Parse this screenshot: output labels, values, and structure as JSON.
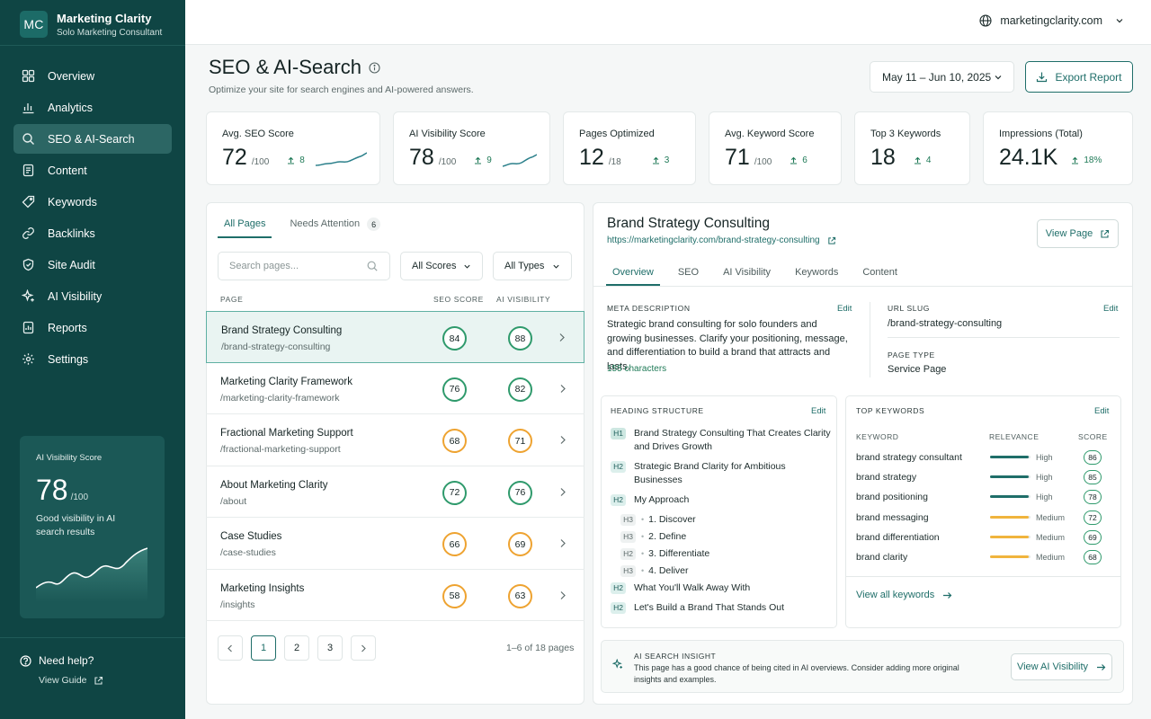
{
  "brand": {
    "logo": "MC",
    "name": "Marketing Clarity",
    "subtitle": "Solo Marketing Consultant"
  },
  "nav": [
    {
      "label": "Overview",
      "icon": "grid-icon",
      "active": false
    },
    {
      "label": "Analytics",
      "icon": "bar-chart-icon",
      "active": false
    },
    {
      "label": "SEO & AI-Search",
      "icon": "search-icon",
      "active": true
    },
    {
      "label": "Content",
      "icon": "document-icon",
      "active": false
    },
    {
      "label": "Keywords",
      "icon": "tag-icon",
      "active": false
    },
    {
      "label": "Backlinks",
      "icon": "link-icon",
      "active": false
    },
    {
      "label": "Site Audit",
      "icon": "shield-icon",
      "active": false
    },
    {
      "label": "AI Visibility",
      "icon": "sparkle-icon",
      "active": false
    },
    {
      "label": "Reports",
      "icon": "report-icon",
      "active": false
    },
    {
      "label": "Settings",
      "icon": "gear-icon",
      "active": false
    }
  ],
  "side_card": {
    "title": "AI Visibility Score",
    "score": "78",
    "of": "/100",
    "desc": "Good visibility in AI search results"
  },
  "help": {
    "label": "Need help?",
    "guide": "View Guide"
  },
  "topbar": {
    "domain": "marketingclarity.com"
  },
  "header": {
    "title": "SEO & AI-Search",
    "subtitle": "Optimize your site for search engines and AI-powered answers.",
    "date_range": "May 11 – Jun 10, 2025",
    "export_label": "Export Report"
  },
  "kpis": [
    {
      "title": "Avg. SEO Score",
      "value": "72",
      "of": "/100",
      "delta": "8",
      "spark": true
    },
    {
      "title": "AI Visibility Score",
      "value": "78",
      "of": "/100",
      "delta": "9",
      "spark": true
    },
    {
      "title": "Pages Optimized",
      "value": "12",
      "of": "/18",
      "delta": "3",
      "spark": false
    },
    {
      "title": "Avg. Keyword Score",
      "value": "71",
      "of": "/100",
      "delta": "6",
      "spark": false
    },
    {
      "title": "Top 3 Keywords",
      "value": "18",
      "of": "",
      "delta": "4",
      "spark": false
    },
    {
      "title": "Impressions (Total)",
      "value": "24.1K",
      "of": "",
      "delta": "18%",
      "spark": false
    }
  ],
  "pages_panel": {
    "tabs": [
      {
        "label": "All Pages",
        "active": true
      },
      {
        "label": "Needs Attention",
        "count": "6",
        "active": false
      }
    ],
    "search_placeholder": "Search pages...",
    "filters": [
      "All Scores",
      "All Types"
    ],
    "columns": {
      "page": "PAGE",
      "seo": "SEO SCORE",
      "ai": "AI VISIBILITY"
    },
    "rows": [
      {
        "name": "Brand Strategy Consulting",
        "slug": "/brand-strategy-consulting",
        "seo": "84",
        "ai": "88",
        "seo_level": "good",
        "ai_level": "good",
        "active": true
      },
      {
        "name": "Marketing Clarity Framework",
        "slug": "/marketing-clarity-framework",
        "seo": "76",
        "ai": "82",
        "seo_level": "good",
        "ai_level": "good",
        "active": false
      },
      {
        "name": "Fractional Marketing Support",
        "slug": "/fractional-marketing-support",
        "seo": "68",
        "ai": "71",
        "seo_level": "medium",
        "ai_level": "medium",
        "active": false
      },
      {
        "name": "About Marketing Clarity",
        "slug": "/about",
        "seo": "72",
        "ai": "76",
        "seo_level": "good",
        "ai_level": "good",
        "active": false
      },
      {
        "name": "Case Studies",
        "slug": "/case-studies",
        "seo": "66",
        "ai": "69",
        "seo_level": "medium",
        "ai_level": "medium",
        "active": false
      },
      {
        "name": "Marketing Insights",
        "slug": "/insights",
        "seo": "58",
        "ai": "63",
        "seo_level": "medium",
        "ai_level": "medium",
        "active": false
      }
    ],
    "pages": [
      "1",
      "2",
      "3"
    ],
    "current_page": "1",
    "pager_info": "1–6 of 18 pages"
  },
  "detail": {
    "title": "Brand Strategy Consulting",
    "url": "https://marketingclarity.com/brand-strategy-consulting",
    "view_page": "View Page",
    "tabs": [
      "Overview",
      "SEO",
      "AI Visibility",
      "Keywords",
      "Content"
    ],
    "active_tab": "Overview",
    "edit": "Edit",
    "meta_label": "META DESCRIPTION",
    "meta_desc": "Strategic brand consulting for solo founders and growing businesses. Clarify your positioning, message, and differentiation to build a brand that attracts and lasts.",
    "meta_chars": "155 characters",
    "slug_label": "URL SLUG",
    "slug": "/brand-strategy-consulting",
    "type_label": "PAGE TYPE",
    "type": "Service Page",
    "heading_label": "HEADING STRUCTURE",
    "headings": [
      {
        "tag": "H1",
        "text": "Brand Strategy Consulting That Creates Clarity and Drives Growth",
        "indent": false
      },
      {
        "tag": "H2",
        "text": "Strategic Brand Clarity for Ambitious Businesses",
        "indent": false
      },
      {
        "tag": "H2",
        "text": "My Approach",
        "indent": false
      },
      {
        "tag": "H3",
        "text": "1. Discover",
        "indent": true
      },
      {
        "tag": "H3",
        "text": "2. Define",
        "indent": true
      },
      {
        "tag": "H2",
        "text": "3. Differentiate",
        "indent": true
      },
      {
        "tag": "H3",
        "text": "4. Deliver",
        "indent": true
      },
      {
        "tag": "H2",
        "text": "What You'll Walk Away With",
        "indent": false
      },
      {
        "tag": "H2",
        "text": "Let's Build a Brand That Stands Out",
        "indent": false
      }
    ],
    "kw_label": "TOP KEYWORDS",
    "kw_columns": {
      "keyword": "KEYWORD",
      "relevance": "RELEVANCE",
      "score": "SCORE"
    },
    "keywords": [
      {
        "name": "brand strategy consultant",
        "relevance": "High",
        "level": 0.95,
        "score": "86"
      },
      {
        "name": "brand strategy",
        "relevance": "High",
        "level": 0.95,
        "score": "85"
      },
      {
        "name": "brand positioning",
        "relevance": "High",
        "level": 0.95,
        "score": "78"
      },
      {
        "name": "brand messaging",
        "relevance": "Medium",
        "level": 0.95,
        "score": "72"
      },
      {
        "name": "brand differentiation",
        "relevance": "Medium",
        "level": 0.95,
        "score": "69"
      },
      {
        "name": "brand clarity",
        "relevance": "Medium",
        "level": 0.95,
        "score": "68"
      }
    ],
    "view_keywords": "View all keywords",
    "insight_label": "AI SEARCH INSIGHT",
    "insight_text": "This page has a good chance of being cited in AI overviews. Consider adding more original insights and examples.",
    "insight_btn": "View AI Visibility"
  },
  "colors": {
    "sidebar": "#0f4544",
    "accent": "#1f6e69",
    "good": "#2f9a6c",
    "medium": "#eea331"
  }
}
